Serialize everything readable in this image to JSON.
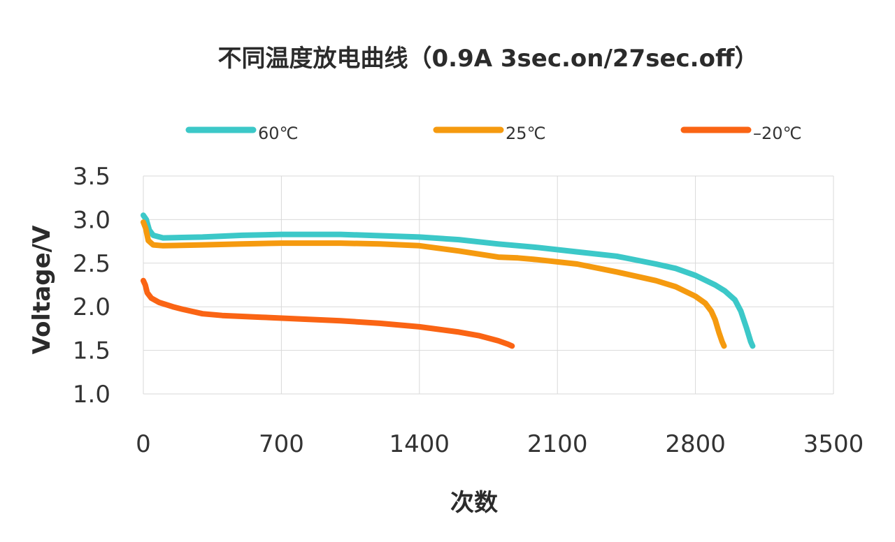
{
  "chart_data": {
    "type": "line",
    "title": "不同温度放电曲线（0.9A 3sec.on/27sec.off）",
    "xlabel": "次数",
    "ylabel": "Voltage/V",
    "xlim": [
      0,
      3500
    ],
    "ylim": [
      1.0,
      3.5
    ],
    "x_ticks": [
      "0",
      "700",
      "1400",
      "2100",
      "2800",
      "3500"
    ],
    "y_ticks": [
      "1.0",
      "1.5",
      "2.0",
      "2.5",
      "3.0",
      "3.5"
    ],
    "grid": true,
    "legend": "top",
    "series": [
      {
        "name": "60℃",
        "color": "#3cc8c8",
        "points": [
          [
            0,
            3.05
          ],
          [
            15,
            3.0
          ],
          [
            30,
            2.88
          ],
          [
            50,
            2.82
          ],
          [
            100,
            2.79
          ],
          [
            300,
            2.8
          ],
          [
            500,
            2.82
          ],
          [
            700,
            2.83
          ],
          [
            1000,
            2.83
          ],
          [
            1400,
            2.8
          ],
          [
            1600,
            2.77
          ],
          [
            1800,
            2.72
          ],
          [
            2000,
            2.68
          ],
          [
            2200,
            2.63
          ],
          [
            2400,
            2.58
          ],
          [
            2600,
            2.49
          ],
          [
            2700,
            2.44
          ],
          [
            2800,
            2.36
          ],
          [
            2900,
            2.25
          ],
          [
            2950,
            2.18
          ],
          [
            3000,
            2.08
          ],
          [
            3030,
            1.95
          ],
          [
            3060,
            1.75
          ],
          [
            3080,
            1.6
          ],
          [
            3090,
            1.55
          ]
        ]
      },
      {
        "name": "25℃",
        "color": "#f59a0f",
        "points": [
          [
            0,
            2.97
          ],
          [
            12,
            2.9
          ],
          [
            25,
            2.76
          ],
          [
            50,
            2.71
          ],
          [
            100,
            2.7
          ],
          [
            300,
            2.71
          ],
          [
            500,
            2.72
          ],
          [
            700,
            2.73
          ],
          [
            1000,
            2.73
          ],
          [
            1200,
            2.72
          ],
          [
            1400,
            2.7
          ],
          [
            1600,
            2.64
          ],
          [
            1800,
            2.57
          ],
          [
            1900,
            2.56
          ],
          [
            2000,
            2.54
          ],
          [
            2200,
            2.49
          ],
          [
            2400,
            2.4
          ],
          [
            2600,
            2.3
          ],
          [
            2700,
            2.23
          ],
          [
            2800,
            2.12
          ],
          [
            2850,
            2.04
          ],
          [
            2880,
            1.95
          ],
          [
            2900,
            1.85
          ],
          [
            2920,
            1.7
          ],
          [
            2935,
            1.6
          ],
          [
            2945,
            1.55
          ]
        ]
      },
      {
        "name": "–20℃",
        "color": "#fa6414",
        "points": [
          [
            0,
            2.3
          ],
          [
            10,
            2.25
          ],
          [
            20,
            2.16
          ],
          [
            40,
            2.1
          ],
          [
            80,
            2.05
          ],
          [
            150,
            2.0
          ],
          [
            200,
            1.97
          ],
          [
            300,
            1.92
          ],
          [
            400,
            1.9
          ],
          [
            600,
            1.88
          ],
          [
            800,
            1.86
          ],
          [
            1000,
            1.84
          ],
          [
            1200,
            1.81
          ],
          [
            1400,
            1.77
          ],
          [
            1500,
            1.74
          ],
          [
            1600,
            1.71
          ],
          [
            1700,
            1.67
          ],
          [
            1800,
            1.61
          ],
          [
            1850,
            1.57
          ],
          [
            1870,
            1.55
          ]
        ]
      }
    ]
  }
}
